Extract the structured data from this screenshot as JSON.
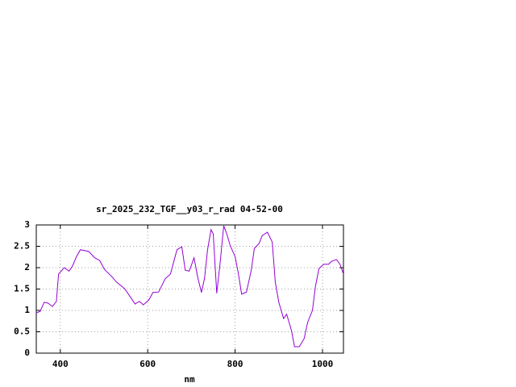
{
  "chart_data": {
    "type": "line",
    "title": "sr_2025_232_TGF__y03_r_rad 04-52-00",
    "x_label": "nm",
    "xlim": [
      345,
      1048
    ],
    "ylim": [
      0,
      3
    ],
    "xticks": [
      400,
      600,
      800,
      1000
    ],
    "yticks": [
      0,
      0.5,
      1,
      1.5,
      2,
      2.5,
      3
    ],
    "grid": true,
    "x": [
      345,
      354,
      363,
      372,
      382,
      391,
      396,
      409,
      420,
      428,
      437,
      446,
      465,
      479,
      490,
      501,
      516,
      529,
      547,
      560,
      571,
      581,
      590,
      603,
      612,
      625,
      640,
      652,
      667,
      678,
      686,
      695,
      706,
      715,
      723,
      730,
      737,
      745,
      750,
      758,
      765,
      774,
      781,
      789,
      800,
      807,
      815,
      826,
      837,
      844,
      855,
      862,
      874,
      885,
      892,
      900,
      911,
      918,
      929,
      936,
      947,
      958,
      966,
      977,
      984,
      992,
      1003,
      1014,
      1021,
      1032,
      1040,
      1048
    ],
    "series": [
      {
        "color": "#9400d3",
        "values": [
          0.94,
          0.98,
          1.19,
          1.17,
          1.09,
          1.21,
          1.85,
          2.0,
          1.92,
          2.04,
          2.26,
          2.42,
          2.38,
          2.23,
          2.17,
          1.96,
          1.81,
          1.66,
          1.51,
          1.32,
          1.15,
          1.21,
          1.13,
          1.25,
          1.42,
          1.43,
          1.74,
          1.85,
          2.42,
          2.49,
          1.94,
          1.92,
          2.23,
          1.75,
          1.42,
          1.75,
          2.42,
          2.89,
          2.79,
          1.4,
          2.04,
          2.98,
          2.79,
          2.51,
          2.26,
          1.89,
          1.38,
          1.43,
          1.94,
          2.45,
          2.57,
          2.75,
          2.83,
          2.6,
          1.66,
          1.19,
          0.81,
          0.91,
          0.53,
          0.15,
          0.15,
          0.34,
          0.72,
          1.0,
          1.57,
          1.98,
          2.08,
          2.08,
          2.15,
          2.19,
          2.08,
          1.85
        ]
      }
    ]
  }
}
